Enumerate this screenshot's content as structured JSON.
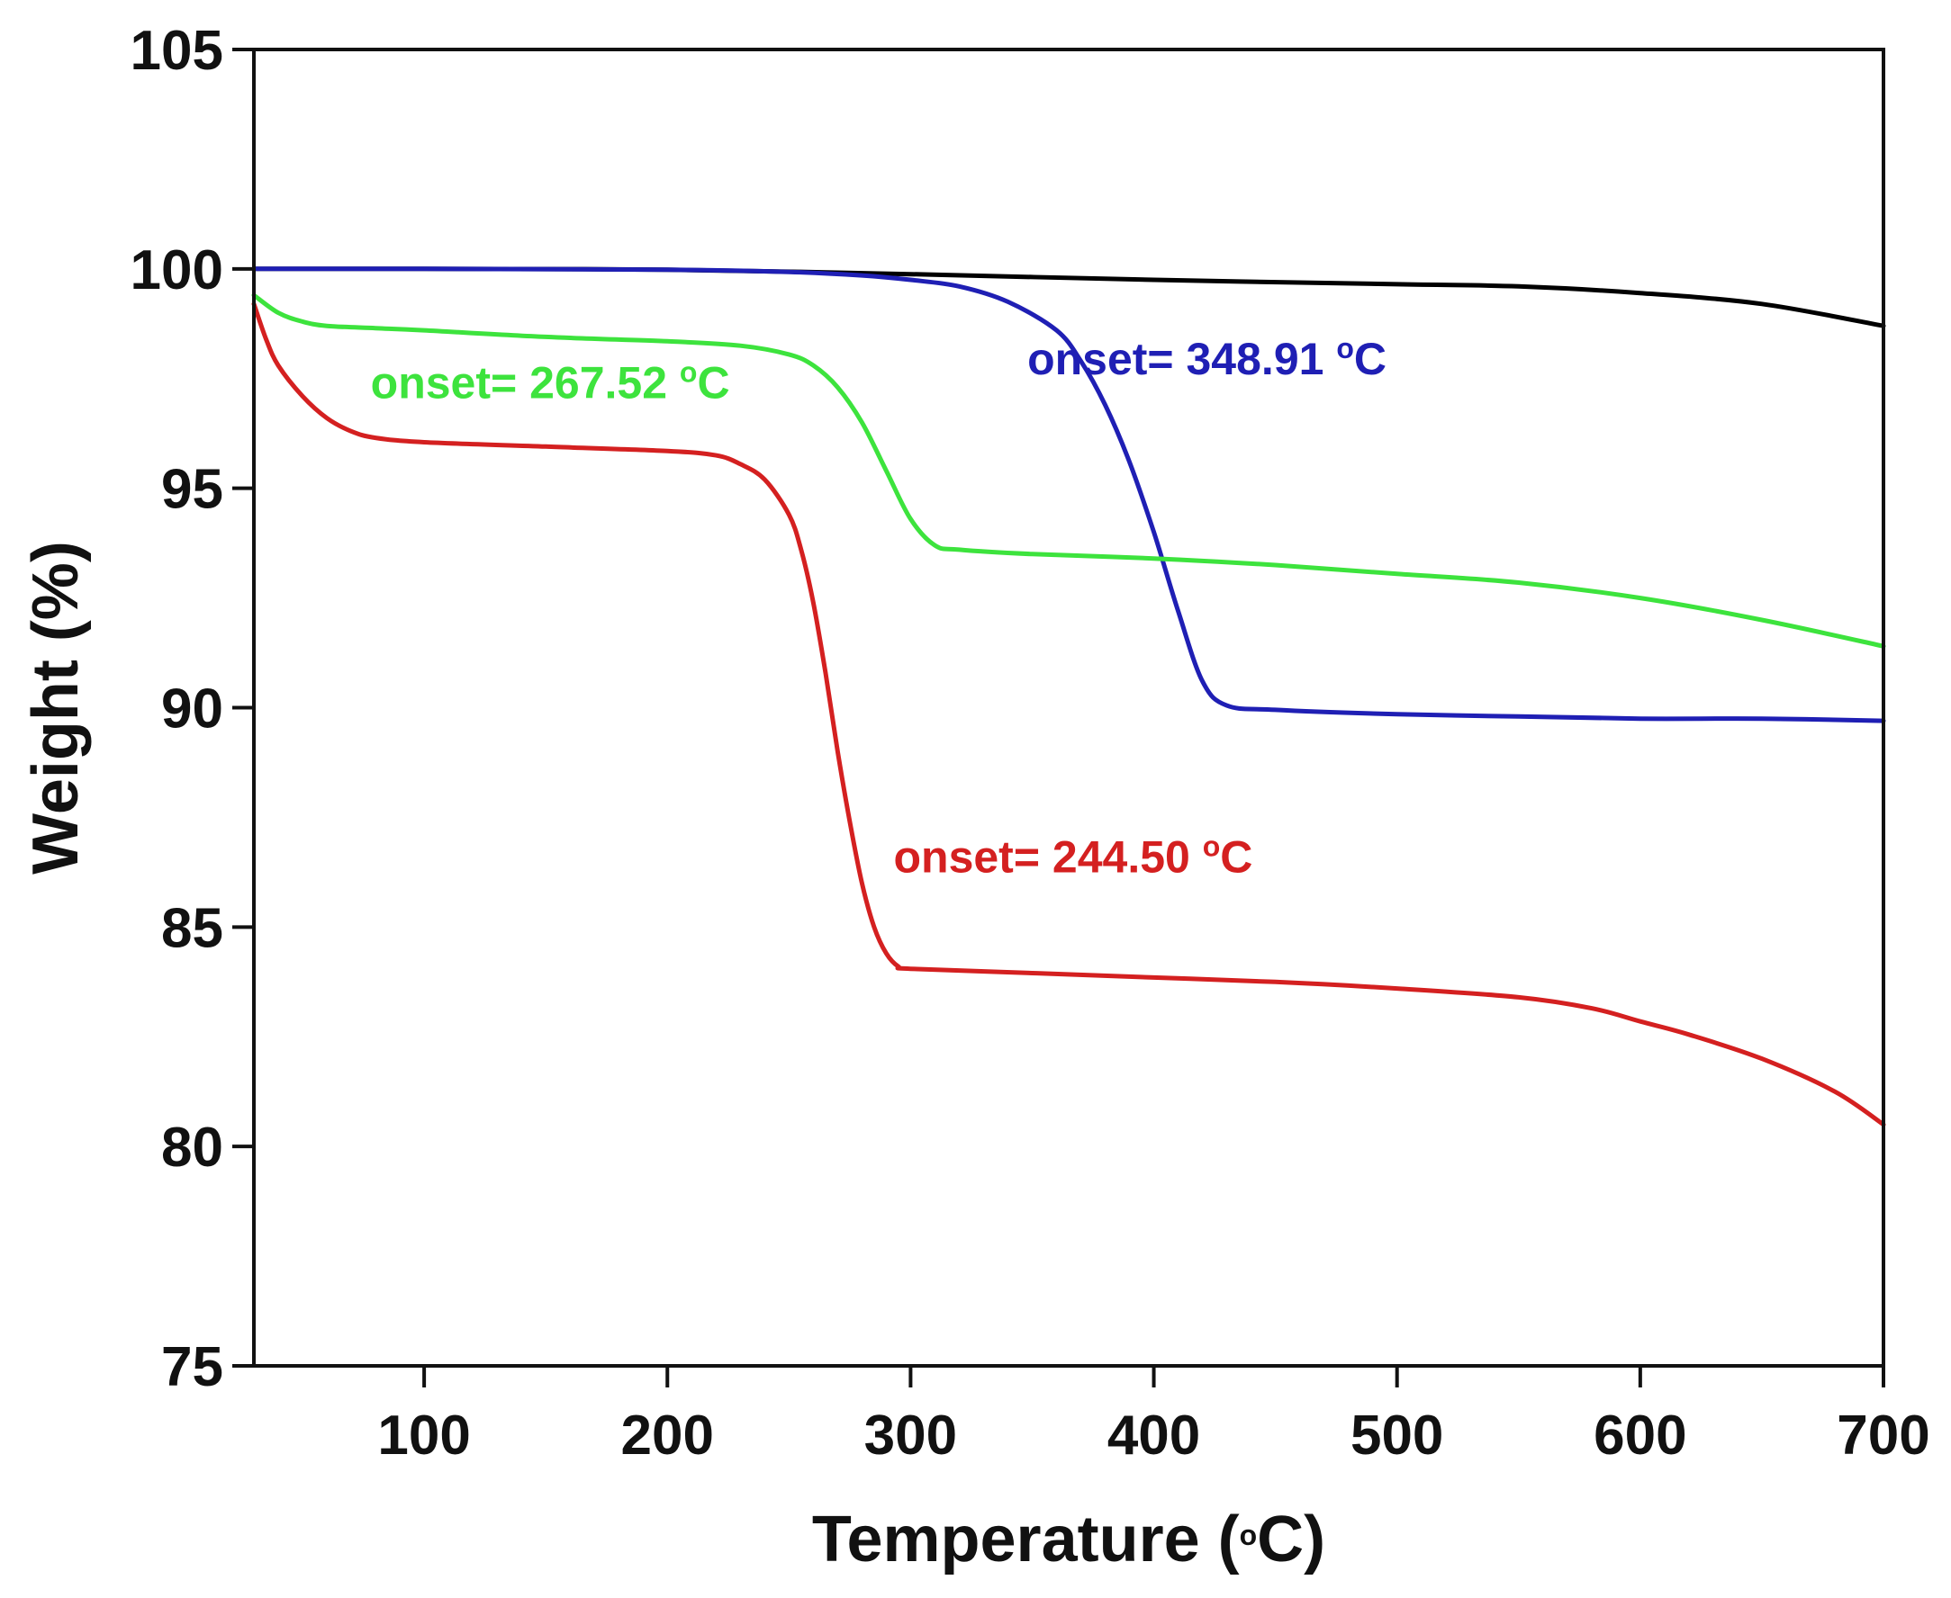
{
  "chart_data": {
    "type": "line",
    "title": "",
    "xlabel": "Temperature (°C)",
    "xlabel_main": "Temperature (",
    "xlabel_sup": "o",
    "xlabel_tail": "C)",
    "ylabel": "Weight (%)",
    "xlim": [
      30,
      700
    ],
    "ylim": [
      75,
      105
    ],
    "xticks": [
      100,
      200,
      300,
      400,
      500,
      600,
      700
    ],
    "yticks": [
      75,
      80,
      85,
      90,
      95,
      100,
      105
    ],
    "grid": false,
    "legend": "none",
    "series": [
      {
        "name": "black",
        "color": "#000000",
        "points": [
          [
            30,
            100
          ],
          [
            100,
            100
          ],
          [
            200,
            99.98
          ],
          [
            300,
            99.88
          ],
          [
            400,
            99.75
          ],
          [
            500,
            99.65
          ],
          [
            550,
            99.6
          ],
          [
            600,
            99.45
          ],
          [
            650,
            99.2
          ],
          [
            700,
            98.7
          ]
        ]
      },
      {
        "name": "blue",
        "color": "#1f1fb4",
        "points": [
          [
            30,
            100
          ],
          [
            100,
            100
          ],
          [
            200,
            99.98
          ],
          [
            250,
            99.93
          ],
          [
            280,
            99.85
          ],
          [
            300,
            99.75
          ],
          [
            320,
            99.6
          ],
          [
            340,
            99.25
          ],
          [
            360,
            98.6
          ],
          [
            370,
            97.9
          ],
          [
            380,
            96.9
          ],
          [
            390,
            95.6
          ],
          [
            400,
            94.0
          ],
          [
            410,
            92.2
          ],
          [
            420,
            90.6
          ],
          [
            430,
            90.05
          ],
          [
            450,
            89.95
          ],
          [
            500,
            89.85
          ],
          [
            550,
            89.8
          ],
          [
            600,
            89.75
          ],
          [
            650,
            89.75
          ],
          [
            700,
            89.7
          ]
        ]
      },
      {
        "name": "green",
        "color": "#3de33d",
        "points": [
          [
            30,
            99.4
          ],
          [
            40,
            99.0
          ],
          [
            50,
            98.8
          ],
          [
            60,
            98.7
          ],
          [
            80,
            98.65
          ],
          [
            100,
            98.6
          ],
          [
            150,
            98.45
          ],
          [
            200,
            98.35
          ],
          [
            230,
            98.25
          ],
          [
            250,
            98.05
          ],
          [
            260,
            97.8
          ],
          [
            270,
            97.3
          ],
          [
            280,
            96.5
          ],
          [
            290,
            95.4
          ],
          [
            300,
            94.3
          ],
          [
            310,
            93.7
          ],
          [
            320,
            93.6
          ],
          [
            350,
            93.5
          ],
          [
            400,
            93.4
          ],
          [
            450,
            93.25
          ],
          [
            500,
            93.05
          ],
          [
            550,
            92.85
          ],
          [
            600,
            92.5
          ],
          [
            650,
            92.0
          ],
          [
            700,
            91.4
          ]
        ]
      },
      {
        "name": "red",
        "color": "#d42020",
        "points": [
          [
            30,
            99.2
          ],
          [
            35,
            98.4
          ],
          [
            40,
            97.8
          ],
          [
            50,
            97.1
          ],
          [
            60,
            96.6
          ],
          [
            70,
            96.3
          ],
          [
            80,
            96.15
          ],
          [
            100,
            96.05
          ],
          [
            150,
            95.95
          ],
          [
            200,
            95.85
          ],
          [
            220,
            95.75
          ],
          [
            230,
            95.55
          ],
          [
            240,
            95.2
          ],
          [
            250,
            94.4
          ],
          [
            255,
            93.6
          ],
          [
            260,
            92.4
          ],
          [
            265,
            90.8
          ],
          [
            270,
            89.0
          ],
          [
            275,
            87.4
          ],
          [
            280,
            86.0
          ],
          [
            285,
            85.0
          ],
          [
            290,
            84.4
          ],
          [
            295,
            84.1
          ],
          [
            300,
            84.05
          ],
          [
            350,
            83.95
          ],
          [
            400,
            83.85
          ],
          [
            450,
            83.75
          ],
          [
            500,
            83.6
          ],
          [
            550,
            83.4
          ],
          [
            580,
            83.15
          ],
          [
            600,
            82.85
          ],
          [
            620,
            82.55
          ],
          [
            650,
            82.0
          ],
          [
            680,
            81.25
          ],
          [
            700,
            80.5
          ]
        ]
      }
    ],
    "annotations": [
      {
        "text": "onset= 267.52 °C",
        "main": "onset= 267.52 ",
        "sup": "o",
        "tail": "C",
        "color": "#3de33d",
        "x": 78,
        "y": 97.05
      },
      {
        "text": "onset= 348.91 °C",
        "main": "onset= 348.91 ",
        "sup": "o",
        "tail": "C",
        "color": "#1f1fb4",
        "x": 348,
        "y": 97.6
      },
      {
        "text": "onset= 244.50 °C",
        "main": "onset= 244.50 ",
        "sup": "o",
        "tail": "C",
        "color": "#d42020",
        "x": 293,
        "y": 86.25
      }
    ]
  }
}
